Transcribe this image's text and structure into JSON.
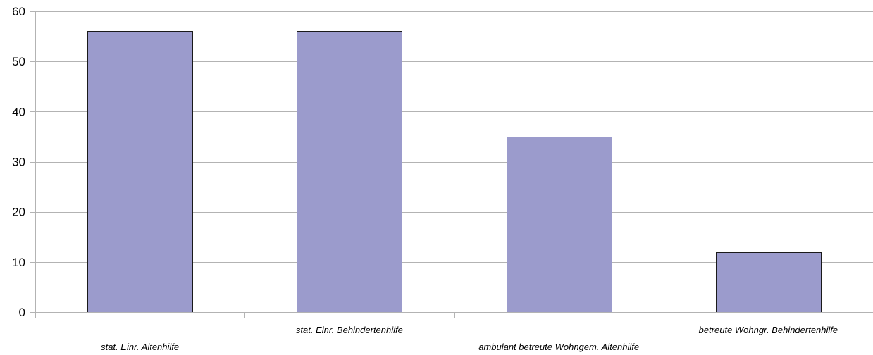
{
  "chart_data": {
    "type": "bar",
    "categories": [
      "stat. Einr. Altenhilfe",
      "stat. Einr. Behindertenhilfe",
      "ambulant betreute Wohngem. Altenhilfe",
      "betreute Wohngr. Behindertenhilfe"
    ],
    "values": [
      56,
      56,
      35,
      12
    ],
    "yticks": [
      0,
      10,
      20,
      30,
      40,
      50,
      60
    ],
    "ylim": [
      0,
      60
    ],
    "title": "",
    "xlabel": "",
    "ylabel": "",
    "grid": true,
    "legend": "none",
    "colors": {
      "bar_fill": "#9b9bcc",
      "bar_stroke": "#1a1a1a",
      "grid": "#b3b3b3",
      "axis": "#b3b3b3",
      "text": "#000000"
    }
  }
}
